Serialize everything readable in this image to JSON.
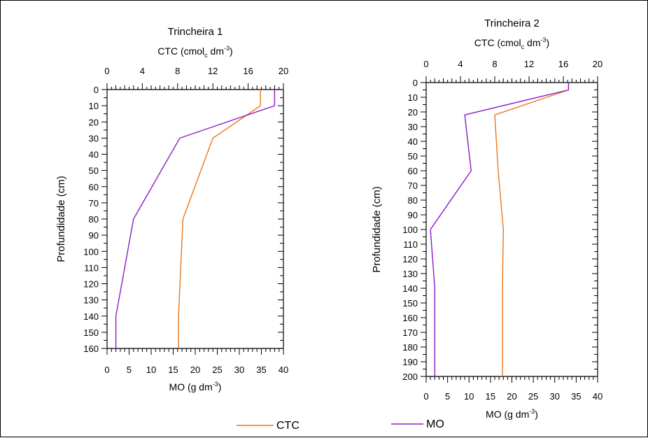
{
  "chart_data": [
    {
      "type": "line",
      "title": "Trincheira 1",
      "top_axis": {
        "label_base": "CTC (cmol",
        "label_sub": "c",
        "label_mid": " dm",
        "label_sup": "-3",
        "label_end": ")",
        "range": [
          0,
          20
        ],
        "ticks": [
          "0",
          "4",
          "8",
          "12",
          "16",
          "20"
        ]
      },
      "bottom_axis": {
        "label_base": "MO (g dm",
        "label_sup": "-3",
        "label_end": ")",
        "range": [
          0,
          40
        ],
        "ticks": [
          "0",
          "5",
          "10",
          "15",
          "20",
          "25",
          "30",
          "35",
          "40"
        ]
      },
      "y_axis": {
        "label": "Profundidade (cm)",
        "range": [
          0,
          160
        ],
        "ticks": [
          "0",
          "10",
          "20",
          "30",
          "40",
          "50",
          "60",
          "70",
          "80",
          "90",
          "100",
          "110",
          "120",
          "130",
          "140",
          "150",
          "160"
        ]
      },
      "series": [
        {
          "name": "CTC",
          "color": "#e8781e",
          "axis": "top",
          "depth": [
            0,
            10,
            30,
            80,
            140,
            160
          ],
          "values": [
            17.4,
            17.4,
            12.0,
            8.6,
            8.1,
            8.1
          ]
        },
        {
          "name": "MO",
          "color": "#8b1bc9",
          "axis": "bottom",
          "depth": [
            0,
            10,
            30,
            80,
            140,
            160
          ],
          "values": [
            38.0,
            38.0,
            16.5,
            6.0,
            2.0,
            2.0
          ]
        }
      ]
    },
    {
      "type": "line",
      "title": "Trincheira 2",
      "top_axis": {
        "label_base": "CTC (cmol",
        "label_sub": "c",
        "label_mid": " dm",
        "label_sup": "-3",
        "label_end": ")",
        "range": [
          0,
          20
        ],
        "ticks": [
          "0",
          "4",
          "8",
          "12",
          "16",
          "20"
        ]
      },
      "bottom_axis": {
        "label_base": "MO (g dm",
        "label_sup": "-3",
        "label_end": ")",
        "range": [
          0,
          40
        ],
        "ticks": [
          "0",
          "5",
          "10",
          "15",
          "20",
          "25",
          "30",
          "35",
          "40"
        ]
      },
      "y_axis": {
        "label": "Profundidade (cm)",
        "range": [
          0,
          200
        ],
        "ticks": [
          "0",
          "10",
          "20",
          "30",
          "40",
          "50",
          "60",
          "70",
          "80",
          "90",
          "100",
          "110",
          "120",
          "130",
          "140",
          "150",
          "160",
          "170",
          "180",
          "190",
          "200"
        ]
      },
      "series": [
        {
          "name": "CTC",
          "color": "#e8781e",
          "axis": "top",
          "depth": [
            0,
            5,
            22,
            60,
            100,
            140,
            200
          ],
          "values": [
            16.6,
            16.6,
            8.0,
            8.4,
            9.0,
            8.9,
            8.9
          ]
        },
        {
          "name": "MO",
          "color": "#8b1bc9",
          "axis": "bottom",
          "depth": [
            0,
            5,
            22,
            60,
            100,
            140,
            200
          ],
          "values": [
            33.2,
            33.2,
            9.0,
            10.5,
            1.0,
            2.0,
            2.0
          ]
        }
      ]
    }
  ],
  "legend": {
    "items": [
      {
        "label": "CTC",
        "color": "#e8781e"
      },
      {
        "label": "MO",
        "color": "#8b1bc9"
      }
    ]
  }
}
